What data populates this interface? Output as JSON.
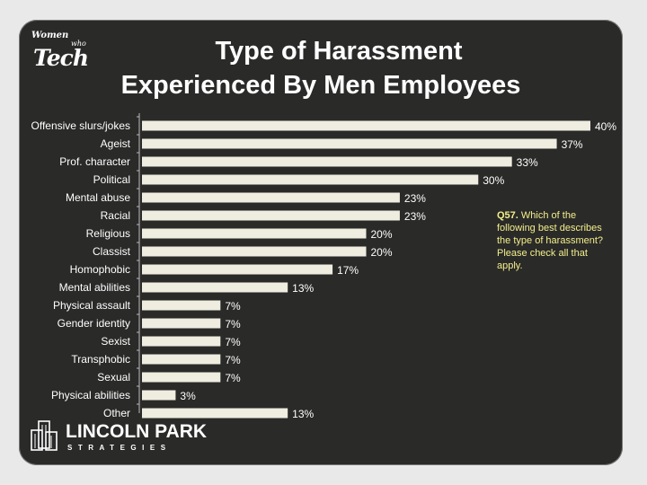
{
  "slide": {
    "title_line1": "Type of Harassment",
    "title_line2": "Experienced By Men Employees",
    "brand_top": {
      "word1": "Women",
      "word2": "who",
      "word3": "Tech"
    },
    "note": {
      "label": "Q57.",
      "text": "Which of the following best describes the type of harassment? Please check all that apply."
    },
    "logo": {
      "name": "LINCOLN PARK",
      "sub": "STRATEGIES"
    }
  },
  "chart_data": {
    "type": "bar",
    "orientation": "horizontal",
    "categories": [
      "Offensive slurs/jokes",
      "Ageist",
      "Prof. character",
      "Political",
      "Mental abuse",
      "Racial",
      "Religious",
      "Classist",
      "Homophobic",
      "Mental abilities",
      "Physical assault",
      "Gender identity",
      "Sexist",
      "Transphobic",
      "Sexual",
      "Physical abilities",
      "Other"
    ],
    "values": [
      40,
      37,
      33,
      30,
      23,
      23,
      20,
      20,
      17,
      13,
      7,
      7,
      7,
      7,
      7,
      3,
      13
    ],
    "value_suffix": "%",
    "xlim": [
      0,
      40
    ],
    "grid": false,
    "colors": {
      "bar": "#efece0",
      "text": "#ffffff",
      "background": "#2a2a29",
      "note": "#f3ef8a"
    }
  }
}
